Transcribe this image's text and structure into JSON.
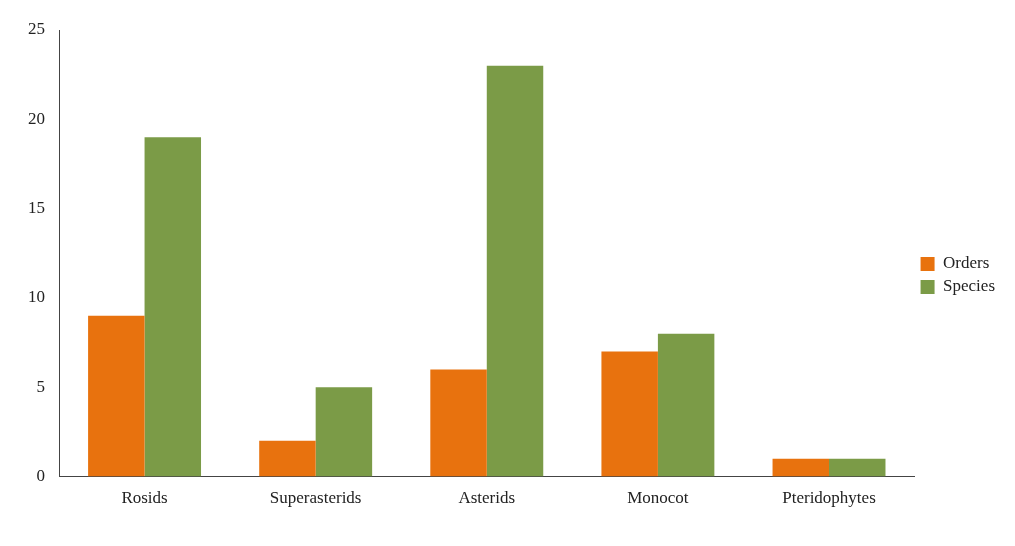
{
  "chart_data": {
    "type": "bar",
    "categories": [
      "Rosids",
      "Superasterids",
      "Asterids",
      "Monocot",
      "Pteridophytes"
    ],
    "series": [
      {
        "name": "Orders",
        "color": "#e8720e",
        "values": [
          9,
          2,
          6,
          7,
          1
        ]
      },
      {
        "name": "Species",
        "color": "#7b9b47",
        "values": [
          19,
          5,
          23,
          8,
          1
        ]
      }
    ],
    "ylim": [
      0,
      25
    ],
    "yticks": [
      0,
      5,
      10,
      15,
      20,
      25
    ],
    "grid": false,
    "legend": "right"
  }
}
